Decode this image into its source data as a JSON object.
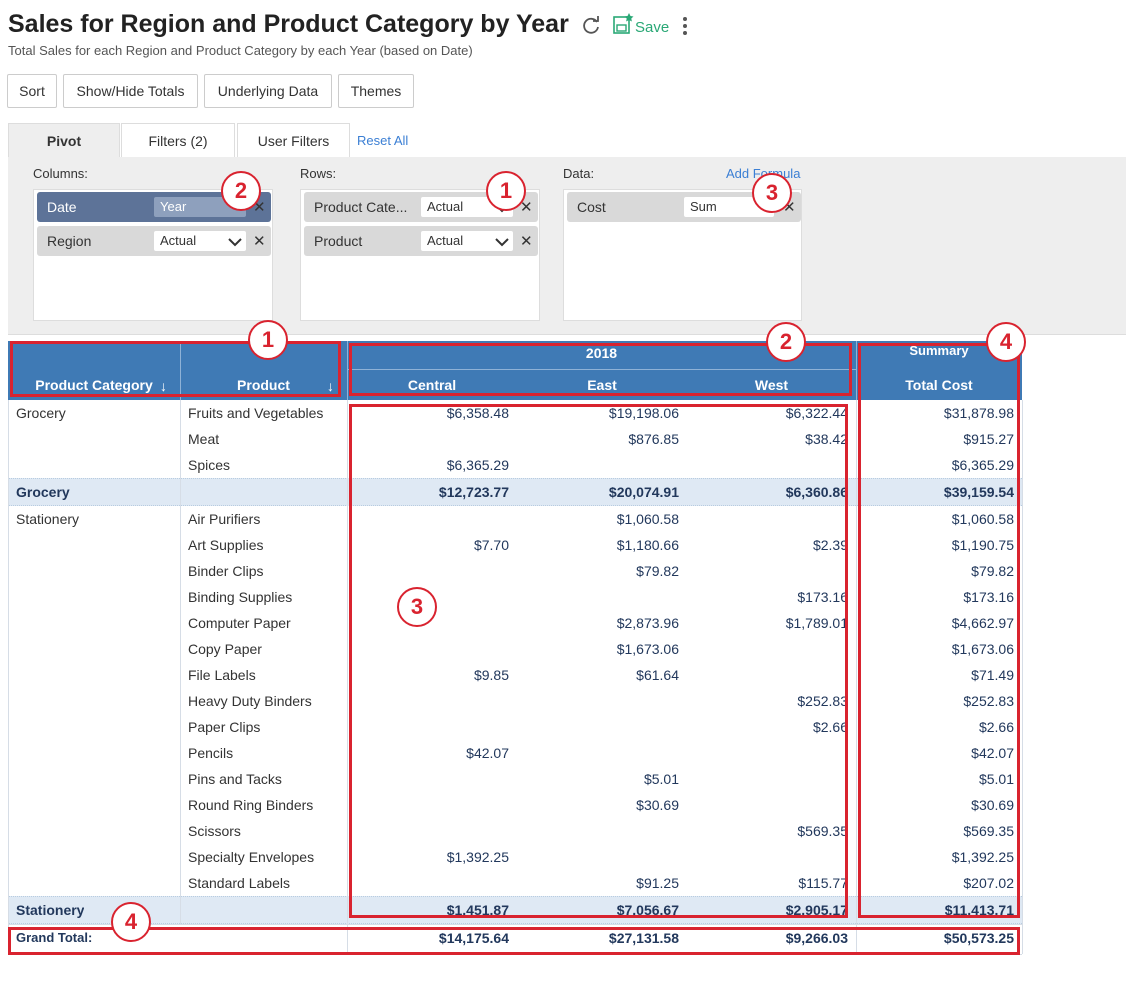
{
  "header": {
    "title": "Sales for Region and Product Category by Year",
    "subtitle": "Total Sales for each Region and Product Category by each Year (based on Date)",
    "save": "Save"
  },
  "toolbar": [
    "Sort",
    "Show/Hide Totals",
    "Underlying Data",
    "Themes"
  ],
  "tabs": [
    "Pivot",
    "Filters (2)",
    "User Filters"
  ],
  "reset": "Reset All",
  "panel": {
    "columns": {
      "label": "Columns:",
      "fields": [
        {
          "name": "Date",
          "agg": "Year"
        },
        {
          "name": "Region",
          "agg": "Actual"
        }
      ]
    },
    "rows": {
      "label": "Rows:",
      "fields": [
        {
          "name": "Product Cate...",
          "agg": "Actual"
        },
        {
          "name": "Product",
          "agg": "Actual"
        }
      ]
    },
    "data": {
      "label": "Data:",
      "add_formula": "Add Formula",
      "fields": [
        {
          "name": "Cost",
          "agg": "Sum"
        }
      ]
    }
  },
  "annotations": [
    "2",
    "1",
    "3",
    "1",
    "2",
    "4",
    "3",
    "4"
  ],
  "table": {
    "year": "2018",
    "summary": "Summary",
    "headers": [
      "Product Category",
      "Product",
      "Central",
      "East",
      "West",
      "Total Cost"
    ],
    "groups": [
      {
        "category": "Grocery",
        "rows": [
          {
            "product": "Fruits and Vegetables",
            "cells": [
              "$6,358.48",
              "$19,198.06",
              "$6,322.44",
              "$31,878.98"
            ]
          },
          {
            "product": "Meat",
            "cells": [
              null,
              "$876.85",
              "$38.42",
              "$915.27"
            ]
          },
          {
            "product": "Spices",
            "cells": [
              "$6,365.29",
              null,
              null,
              "$6,365.29"
            ]
          }
        ],
        "subtotal": [
          "$12,723.77",
          "$20,074.91",
          "$6,360.86",
          "$39,159.54"
        ]
      },
      {
        "category": "Stationery",
        "rows": [
          {
            "product": "Air Purifiers",
            "cells": [
              null,
              "$1,060.58",
              null,
              "$1,060.58"
            ]
          },
          {
            "product": "Art Supplies",
            "cells": [
              "$7.70",
              "$1,180.66",
              "$2.39",
              "$1,190.75"
            ]
          },
          {
            "product": "Binder Clips",
            "cells": [
              null,
              "$79.82",
              null,
              "$79.82"
            ]
          },
          {
            "product": "Binding Supplies",
            "cells": [
              null,
              null,
              "$173.16",
              "$173.16"
            ]
          },
          {
            "product": "Computer Paper",
            "cells": [
              null,
              "$2,873.96",
              "$1,789.01",
              "$4,662.97"
            ]
          },
          {
            "product": "Copy Paper",
            "cells": [
              null,
              "$1,673.06",
              null,
              "$1,673.06"
            ]
          },
          {
            "product": "File Labels",
            "cells": [
              "$9.85",
              "$61.64",
              null,
              "$71.49"
            ]
          },
          {
            "product": "Heavy Duty Binders",
            "cells": [
              null,
              null,
              "$252.83",
              "$252.83"
            ]
          },
          {
            "product": "Paper Clips",
            "cells": [
              null,
              null,
              "$2.66",
              "$2.66"
            ]
          },
          {
            "product": "Pencils",
            "cells": [
              "$42.07",
              null,
              null,
              "$42.07"
            ]
          },
          {
            "product": "Pins and Tacks",
            "cells": [
              null,
              "$5.01",
              null,
              "$5.01"
            ]
          },
          {
            "product": "Round Ring Binders",
            "cells": [
              null,
              "$30.69",
              null,
              "$30.69"
            ]
          },
          {
            "product": "Scissors",
            "cells": [
              null,
              null,
              "$569.35",
              "$569.35"
            ]
          },
          {
            "product": "Specialty Envelopes",
            "cells": [
              "$1,392.25",
              null,
              null,
              "$1,392.25"
            ]
          },
          {
            "product": "Standard Labels",
            "cells": [
              null,
              "$91.25",
              "$115.77",
              "$207.02"
            ]
          }
        ],
        "subtotal": [
          "$1,451.87",
          "$7,056.67",
          "$2,905.17",
          "$11,413.71"
        ]
      }
    ],
    "grand_total": {
      "label": "Grand Total:",
      "cells": [
        "$14,175.64",
        "$27,131.58",
        "$9,266.03",
        "$50,573.25"
      ]
    }
  }
}
